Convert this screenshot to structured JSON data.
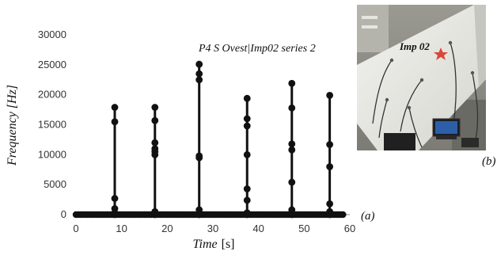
{
  "chart_data": {
    "type": "scatter",
    "title": "",
    "annotation": "P4 S Ovest|Imp02 series 2",
    "xlabel": "Time",
    "xunit": "[s]",
    "ylabel": "Frequency [Hz]",
    "xlim": [
      0,
      60
    ],
    "ylim": [
      0,
      30000
    ],
    "x_ticks": [
      0,
      10,
      20,
      30,
      40,
      50,
      60
    ],
    "y_ticks": [
      0,
      5000,
      10000,
      15000,
      20000,
      25000,
      30000
    ],
    "grid": false,
    "legend": "none",
    "connect_vertical": true,
    "panel_label": "(a)",
    "baseline_points": {
      "x_start": 0,
      "x_end": 58.5,
      "y": 0
    },
    "events": [
      {
        "x": 8.5,
        "y": [
          0,
          300,
          1000,
          2700,
          15500,
          17900
        ]
      },
      {
        "x": 17.3,
        "y": [
          0,
          500,
          10000,
          10500,
          11000,
          12000,
          15700,
          17900
        ]
      },
      {
        "x": 27.0,
        "y": [
          0,
          800,
          9500,
          9800,
          22500,
          23500,
          25100
        ]
      },
      {
        "x": 37.5,
        "y": [
          0,
          300,
          2400,
          4300,
          10000,
          14800,
          16000,
          19400
        ]
      },
      {
        "x": 47.3,
        "y": [
          0,
          200,
          800,
          5400,
          10800,
          11800,
          17800,
          21900
        ]
      },
      {
        "x": 55.6,
        "y": [
          0,
          500,
          1800,
          8000,
          11700,
          19900
        ]
      }
    ],
    "series_color": "#111111"
  },
  "photo": {
    "label": "Imp 02",
    "panel_label": "(b)"
  }
}
